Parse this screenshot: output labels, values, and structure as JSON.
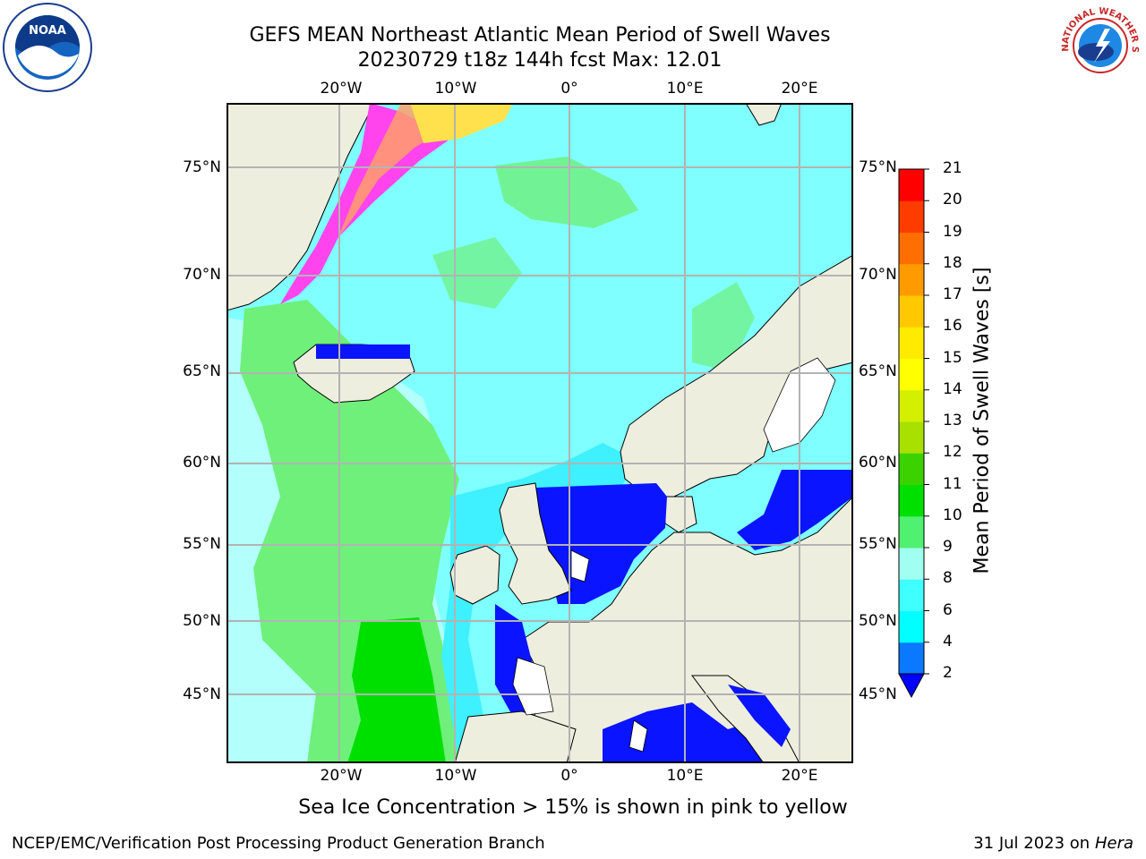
{
  "title": {
    "line1": "GEFS MEAN Northeast Atlantic Mean Period of Swell Waves",
    "line2": "20230729 t18z 144h fcst   Max: 12.01"
  },
  "logos": {
    "left": {
      "icon": "noaa-logo",
      "text": "NOAA"
    },
    "right": {
      "icon": "nws-logo",
      "text": "NATIONAL WEATHER SERVICE"
    }
  },
  "map": {
    "longitude_labels": [
      "20°W",
      "10°W",
      "0°",
      "10°E",
      "20°E"
    ],
    "latitude_labels": [
      "75°N",
      "70°N",
      "65°N",
      "60°N",
      "55°N",
      "50°N",
      "45°N"
    ],
    "grid": true,
    "colors": {
      "land": "#eeeedf",
      "ocean_cyan": "#7fffff",
      "ocean_light": "#b3fffb",
      "ocean_green": "#6ef07a",
      "sea_blue": "#0a14ff",
      "ice_pink": "#ff44ee",
      "ice_yellow": "#ffe14d"
    }
  },
  "colorbar": {
    "title": "Mean Period of Swell Waves [s]",
    "tick_labels": [
      "2",
      "4",
      "6",
      "8",
      "9",
      "10",
      "11",
      "12",
      "13",
      "14",
      "15",
      "16",
      "17",
      "18",
      "19",
      "20",
      "21"
    ],
    "colors": [
      "#0000ff",
      "#0a78ff",
      "#00ffff",
      "#40ffff",
      "#a0fff0",
      "#50f070",
      "#00e000",
      "#3cd200",
      "#a8e000",
      "#d4f000",
      "#ffff00",
      "#ffeb00",
      "#ffc800",
      "#ff9b00",
      "#ff6e00",
      "#ff3c00",
      "#ff0000"
    ],
    "extend": "min"
  },
  "note": "Sea Ice Concentration > 15% is shown in pink to yellow",
  "footer": {
    "left": "NCEP/EMC/Verification Post Processing Product Generation Branch",
    "date": "31 Jul 2023 on",
    "machine": "Hera"
  }
}
